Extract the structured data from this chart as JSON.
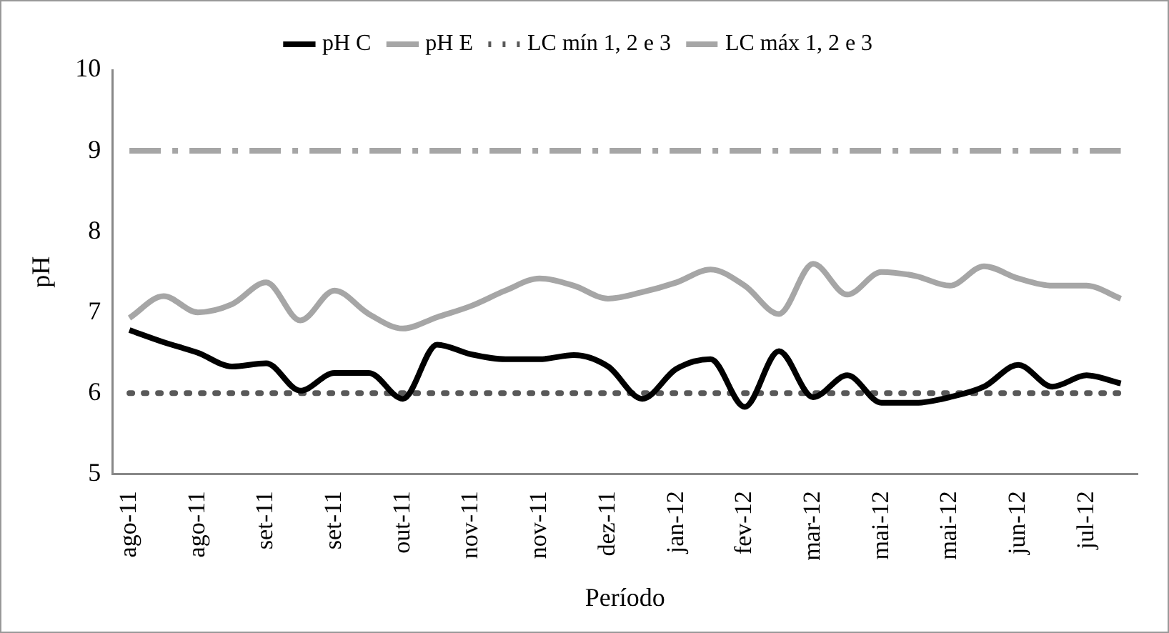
{
  "chart_data": {
    "type": "line",
    "xlabel": "Período",
    "ylabel": "pH",
    "categories": [
      "ago-11",
      null,
      "ago-11",
      null,
      "set-11",
      null,
      "set-11",
      null,
      "out-11",
      null,
      "nov-11",
      null,
      "nov-11",
      null,
      "dez-11",
      null,
      "jan-12",
      null,
      "fev-12",
      null,
      "mar-12",
      null,
      "mai-12",
      null,
      "mai-12",
      null,
      "jun-12",
      null,
      "jul-12",
      null
    ],
    "series": [
      {
        "name": "pH C",
        "color": "#000000",
        "line_style": "solid",
        "values": [
          6.78,
          6.63,
          6.5,
          6.33,
          6.37,
          6.03,
          6.25,
          6.25,
          5.93,
          6.6,
          6.48,
          6.42,
          6.42,
          6.47,
          6.33,
          5.93,
          6.3,
          6.42,
          5.83,
          6.52,
          5.95,
          6.22,
          5.88,
          5.88,
          5.95,
          6.08,
          6.35,
          6.08,
          6.22,
          6.12
        ]
      },
      {
        "name": "pH E",
        "color": "#a6a6a6",
        "line_style": "solid",
        "values": [
          6.93,
          7.2,
          7.0,
          7.1,
          7.37,
          6.9,
          7.27,
          6.98,
          6.8,
          6.94,
          7.08,
          7.27,
          7.42,
          7.33,
          7.17,
          7.25,
          7.37,
          7.53,
          7.33,
          6.98,
          7.6,
          7.22,
          7.5,
          7.45,
          7.33,
          7.57,
          7.42,
          7.33,
          7.33,
          7.17
        ]
      },
      {
        "name": "LC mín 1, 2 e 3",
        "color": "#595959",
        "line_style": "dotted",
        "values": [
          6,
          6,
          6,
          6,
          6,
          6,
          6,
          6,
          6,
          6,
          6,
          6,
          6,
          6,
          6,
          6,
          6,
          6,
          6,
          6,
          6,
          6,
          6,
          6,
          6,
          6,
          6,
          6,
          6,
          6
        ]
      },
      {
        "name": "LC máx 1, 2 e 3",
        "color": "#a6a6a6",
        "line_style": "dashed",
        "values": [
          9,
          9,
          9,
          9,
          9,
          9,
          9,
          9,
          9,
          9,
          9,
          9,
          9,
          9,
          9,
          9,
          9,
          9,
          9,
          9,
          9,
          9,
          9,
          9,
          9,
          9,
          9,
          9,
          9,
          9
        ]
      }
    ],
    "ylim": [
      5,
      10
    ],
    "yticks": [
      5,
      6,
      7,
      8,
      9,
      10
    ],
    "grid": false,
    "legend": "top",
    "marker": "none"
  }
}
